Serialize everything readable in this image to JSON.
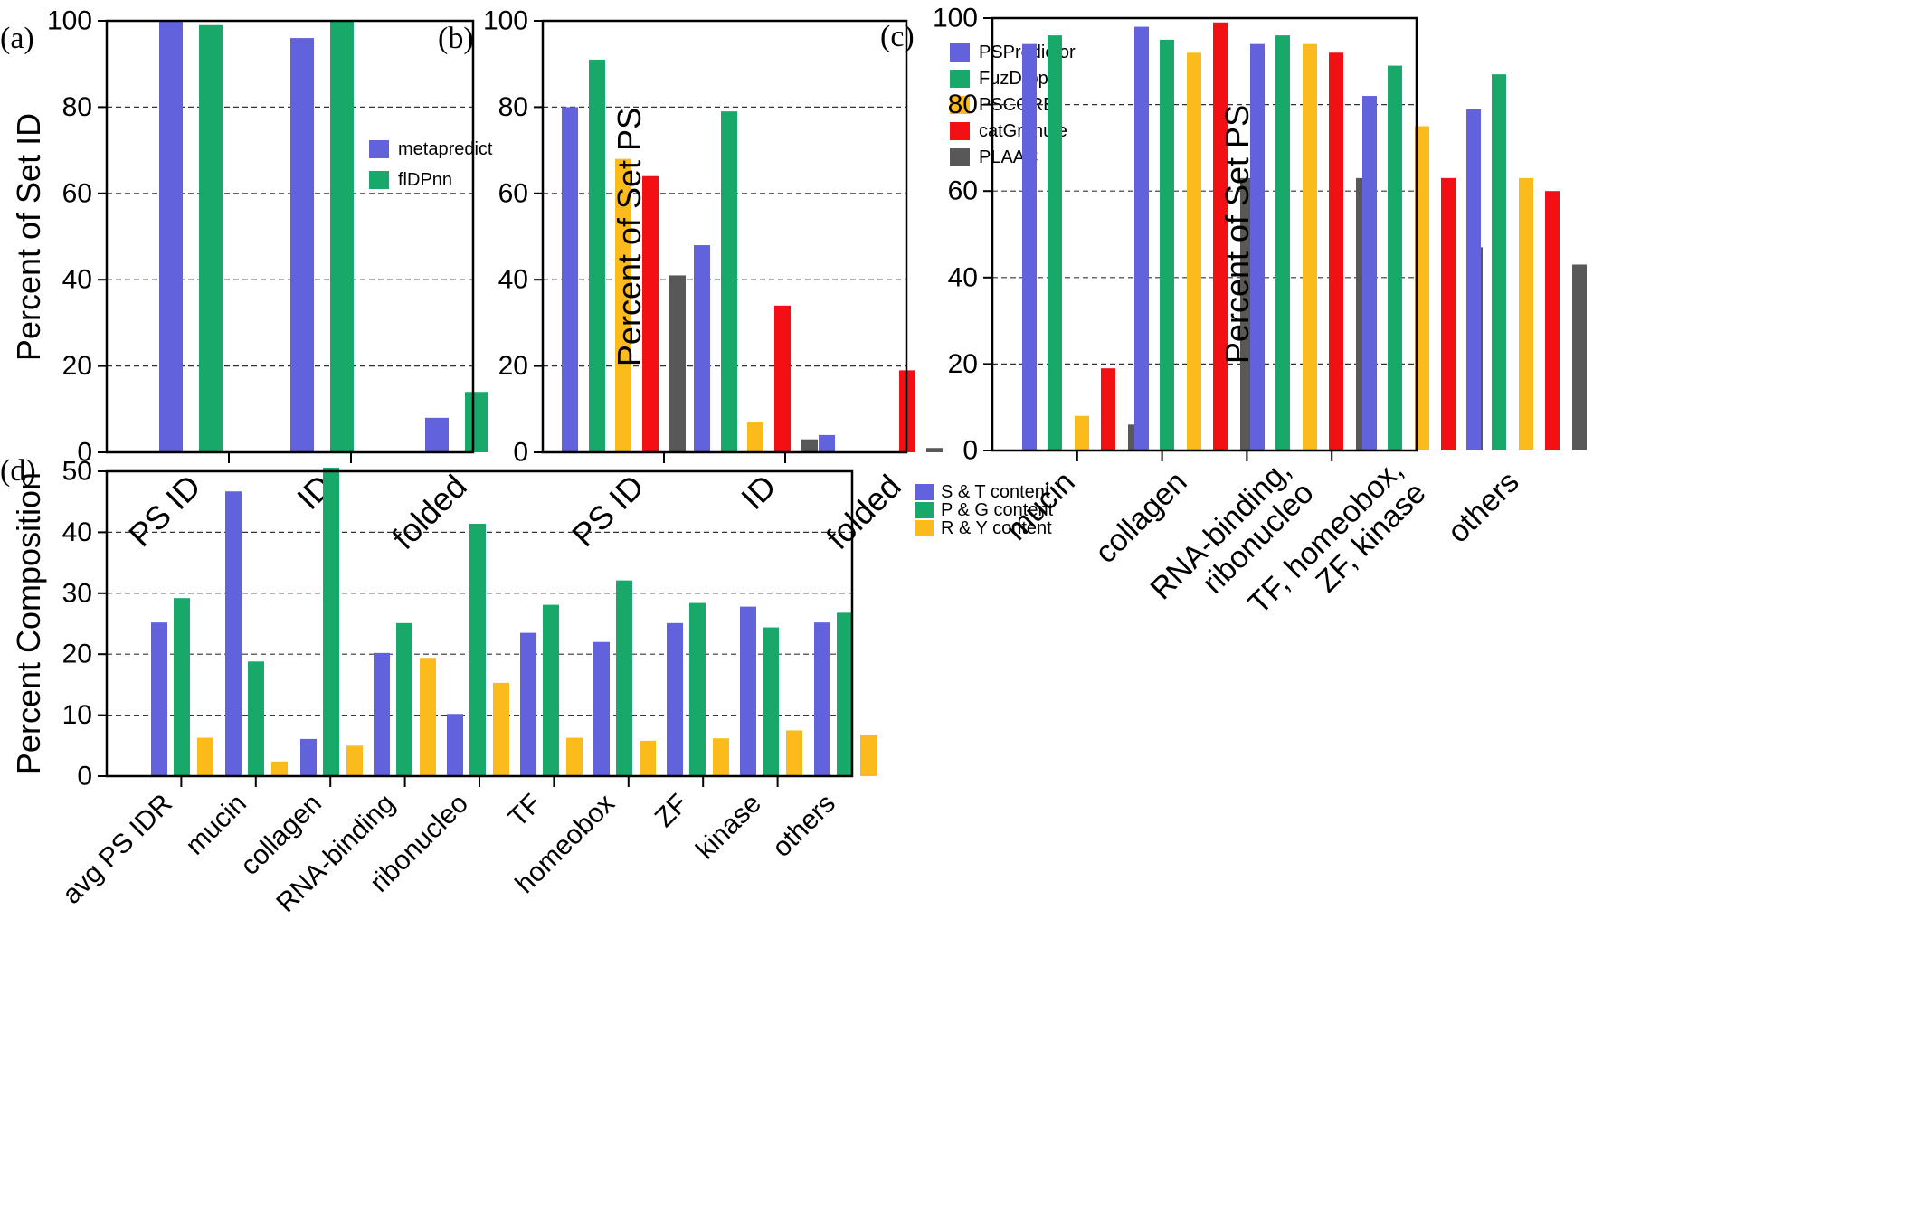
{
  "chart_data": [
    {
      "panel": "(a)",
      "type": "bar",
      "ylabel": "Percent of Set ID",
      "ylim": [
        0,
        100
      ],
      "yticks": [
        0,
        20,
        40,
        60,
        80,
        100
      ],
      "grid": true,
      "legend_position": "right",
      "categories": [
        "PS ID",
        "ID",
        "folded"
      ],
      "series": [
        {
          "name": "metapredict",
          "color": "#6262dc",
          "values": [
            100,
            96,
            8
          ]
        },
        {
          "name": "flDPnn",
          "color": "#18a86a",
          "values": [
            99,
            100,
            14
          ]
        }
      ]
    },
    {
      "panel": "(b)",
      "type": "bar",
      "ylabel": "Percent of Set PS",
      "ylim": [
        0,
        100
      ],
      "yticks": [
        0,
        20,
        40,
        60,
        80,
        100
      ],
      "grid": true,
      "legend_position": "top-right",
      "categories": [
        "PS ID",
        "ID",
        "folded"
      ],
      "series": [
        {
          "name": "PSPredictor",
          "color": "#6262dc",
          "values": [
            80,
            48,
            4
          ]
        },
        {
          "name": "FuzDrop",
          "color": "#18a86a",
          "values": [
            91,
            79,
            0
          ]
        },
        {
          "name": "PSCORE",
          "color": "#fbbb1c",
          "values": [
            68,
            7,
            0
          ]
        },
        {
          "name": "catGranule",
          "color": "#f21015",
          "values": [
            64,
            34,
            19
          ]
        },
        {
          "name": "PLAAC",
          "color": "#585858",
          "values": [
            41,
            3,
            1
          ]
        }
      ]
    },
    {
      "panel": "(c)",
      "type": "bar",
      "ylabel": "Percent of Set PS",
      "ylim": [
        0,
        100
      ],
      "yticks": [
        0,
        20,
        40,
        60,
        80,
        100
      ],
      "grid": true,
      "categories": [
        "mucin",
        "collagen",
        "RNA-binding,\nribonucleo",
        "TF, homeobox,\nZF, kinase",
        "others"
      ],
      "series": [
        {
          "name": "PSPredictor",
          "color": "#6262dc",
          "values": [
            94,
            98,
            94,
            82,
            79
          ]
        },
        {
          "name": "FuzDrop",
          "color": "#18a86a",
          "values": [
            96,
            95,
            96,
            89,
            87
          ]
        },
        {
          "name": "PSCORE",
          "color": "#fbbb1c",
          "values": [
            8,
            92,
            94,
            75,
            63
          ]
        },
        {
          "name": "catGranule",
          "color": "#f21015",
          "values": [
            19,
            99,
            92,
            63,
            60
          ]
        },
        {
          "name": "PLAAC",
          "color": "#585858",
          "values": [
            6,
            63,
            63,
            47,
            43
          ]
        }
      ]
    },
    {
      "panel": "(d)",
      "type": "bar",
      "ylabel": "Percent Composition",
      "ylim": [
        0,
        50
      ],
      "yticks": [
        0,
        10,
        20,
        30,
        40,
        50
      ],
      "grid": true,
      "legend_position": "top-right",
      "categories": [
        "avg PS IDR",
        "mucin",
        "collagen",
        "RNA-binding",
        "ribonucleo",
        "TF",
        "homeobox",
        "ZF",
        "kinase",
        "others"
      ],
      "series": [
        {
          "name": "S & T content",
          "color": "#6262dc",
          "values": [
            25.2,
            46.7,
            6.1,
            20.2,
            10.2,
            23.5,
            22.0,
            25.1,
            27.8,
            25.2
          ]
        },
        {
          "name": "P & G content",
          "color": "#18a86a",
          "values": [
            29.2,
            18.8,
            50.6,
            25.1,
            41.4,
            28.1,
            32.1,
            28.4,
            24.4,
            26.8
          ]
        },
        {
          "name": "R & Y content",
          "color": "#fbbb1c",
          "values": [
            6.3,
            2.4,
            5.0,
            19.4,
            15.3,
            6.3,
            5.8,
            6.2,
            7.5,
            6.8
          ]
        }
      ]
    }
  ]
}
